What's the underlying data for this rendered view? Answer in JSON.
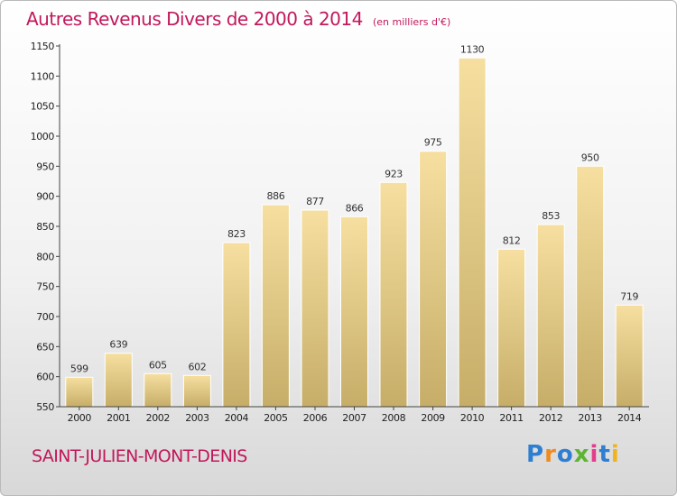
{
  "title": "Autres Revenus Divers de 2000 à 2014",
  "subtitle": "(en milliers d'€)",
  "place": "SAINT-JULIEN-MONT-DENIS",
  "logo": {
    "text": "Proxiti",
    "colors": [
      "#2e7fd1",
      "#f08c1e",
      "#2e7fd1",
      "#5cb531",
      "#e23e8c",
      "#2e7fd1",
      "#f0b41e"
    ]
  },
  "colors": {
    "title": "#c2185b",
    "bar_light": "#f6dfa0",
    "bar_dark": "#c6ad68",
    "bar_edge": "#ffffff"
  },
  "chart_data": {
    "type": "bar",
    "title": "Autres Revenus Divers de 2000 à 2014",
    "subtitle": "(en milliers d'€)",
    "categories": [
      "2000",
      "2001",
      "2002",
      "2003",
      "2004",
      "2005",
      "2006",
      "2007",
      "2008",
      "2009",
      "2010",
      "2011",
      "2012",
      "2013",
      "2014"
    ],
    "values": [
      599,
      639,
      605,
      602,
      823,
      886,
      877,
      866,
      923,
      975,
      1130,
      812,
      853,
      950,
      719
    ],
    "ylim": [
      550,
      1150
    ],
    "yticks": [
      550,
      600,
      650,
      700,
      750,
      800,
      850,
      900,
      950,
      1000,
      1050,
      1100,
      1150
    ],
    "grid": false,
    "data_labels": true
  }
}
